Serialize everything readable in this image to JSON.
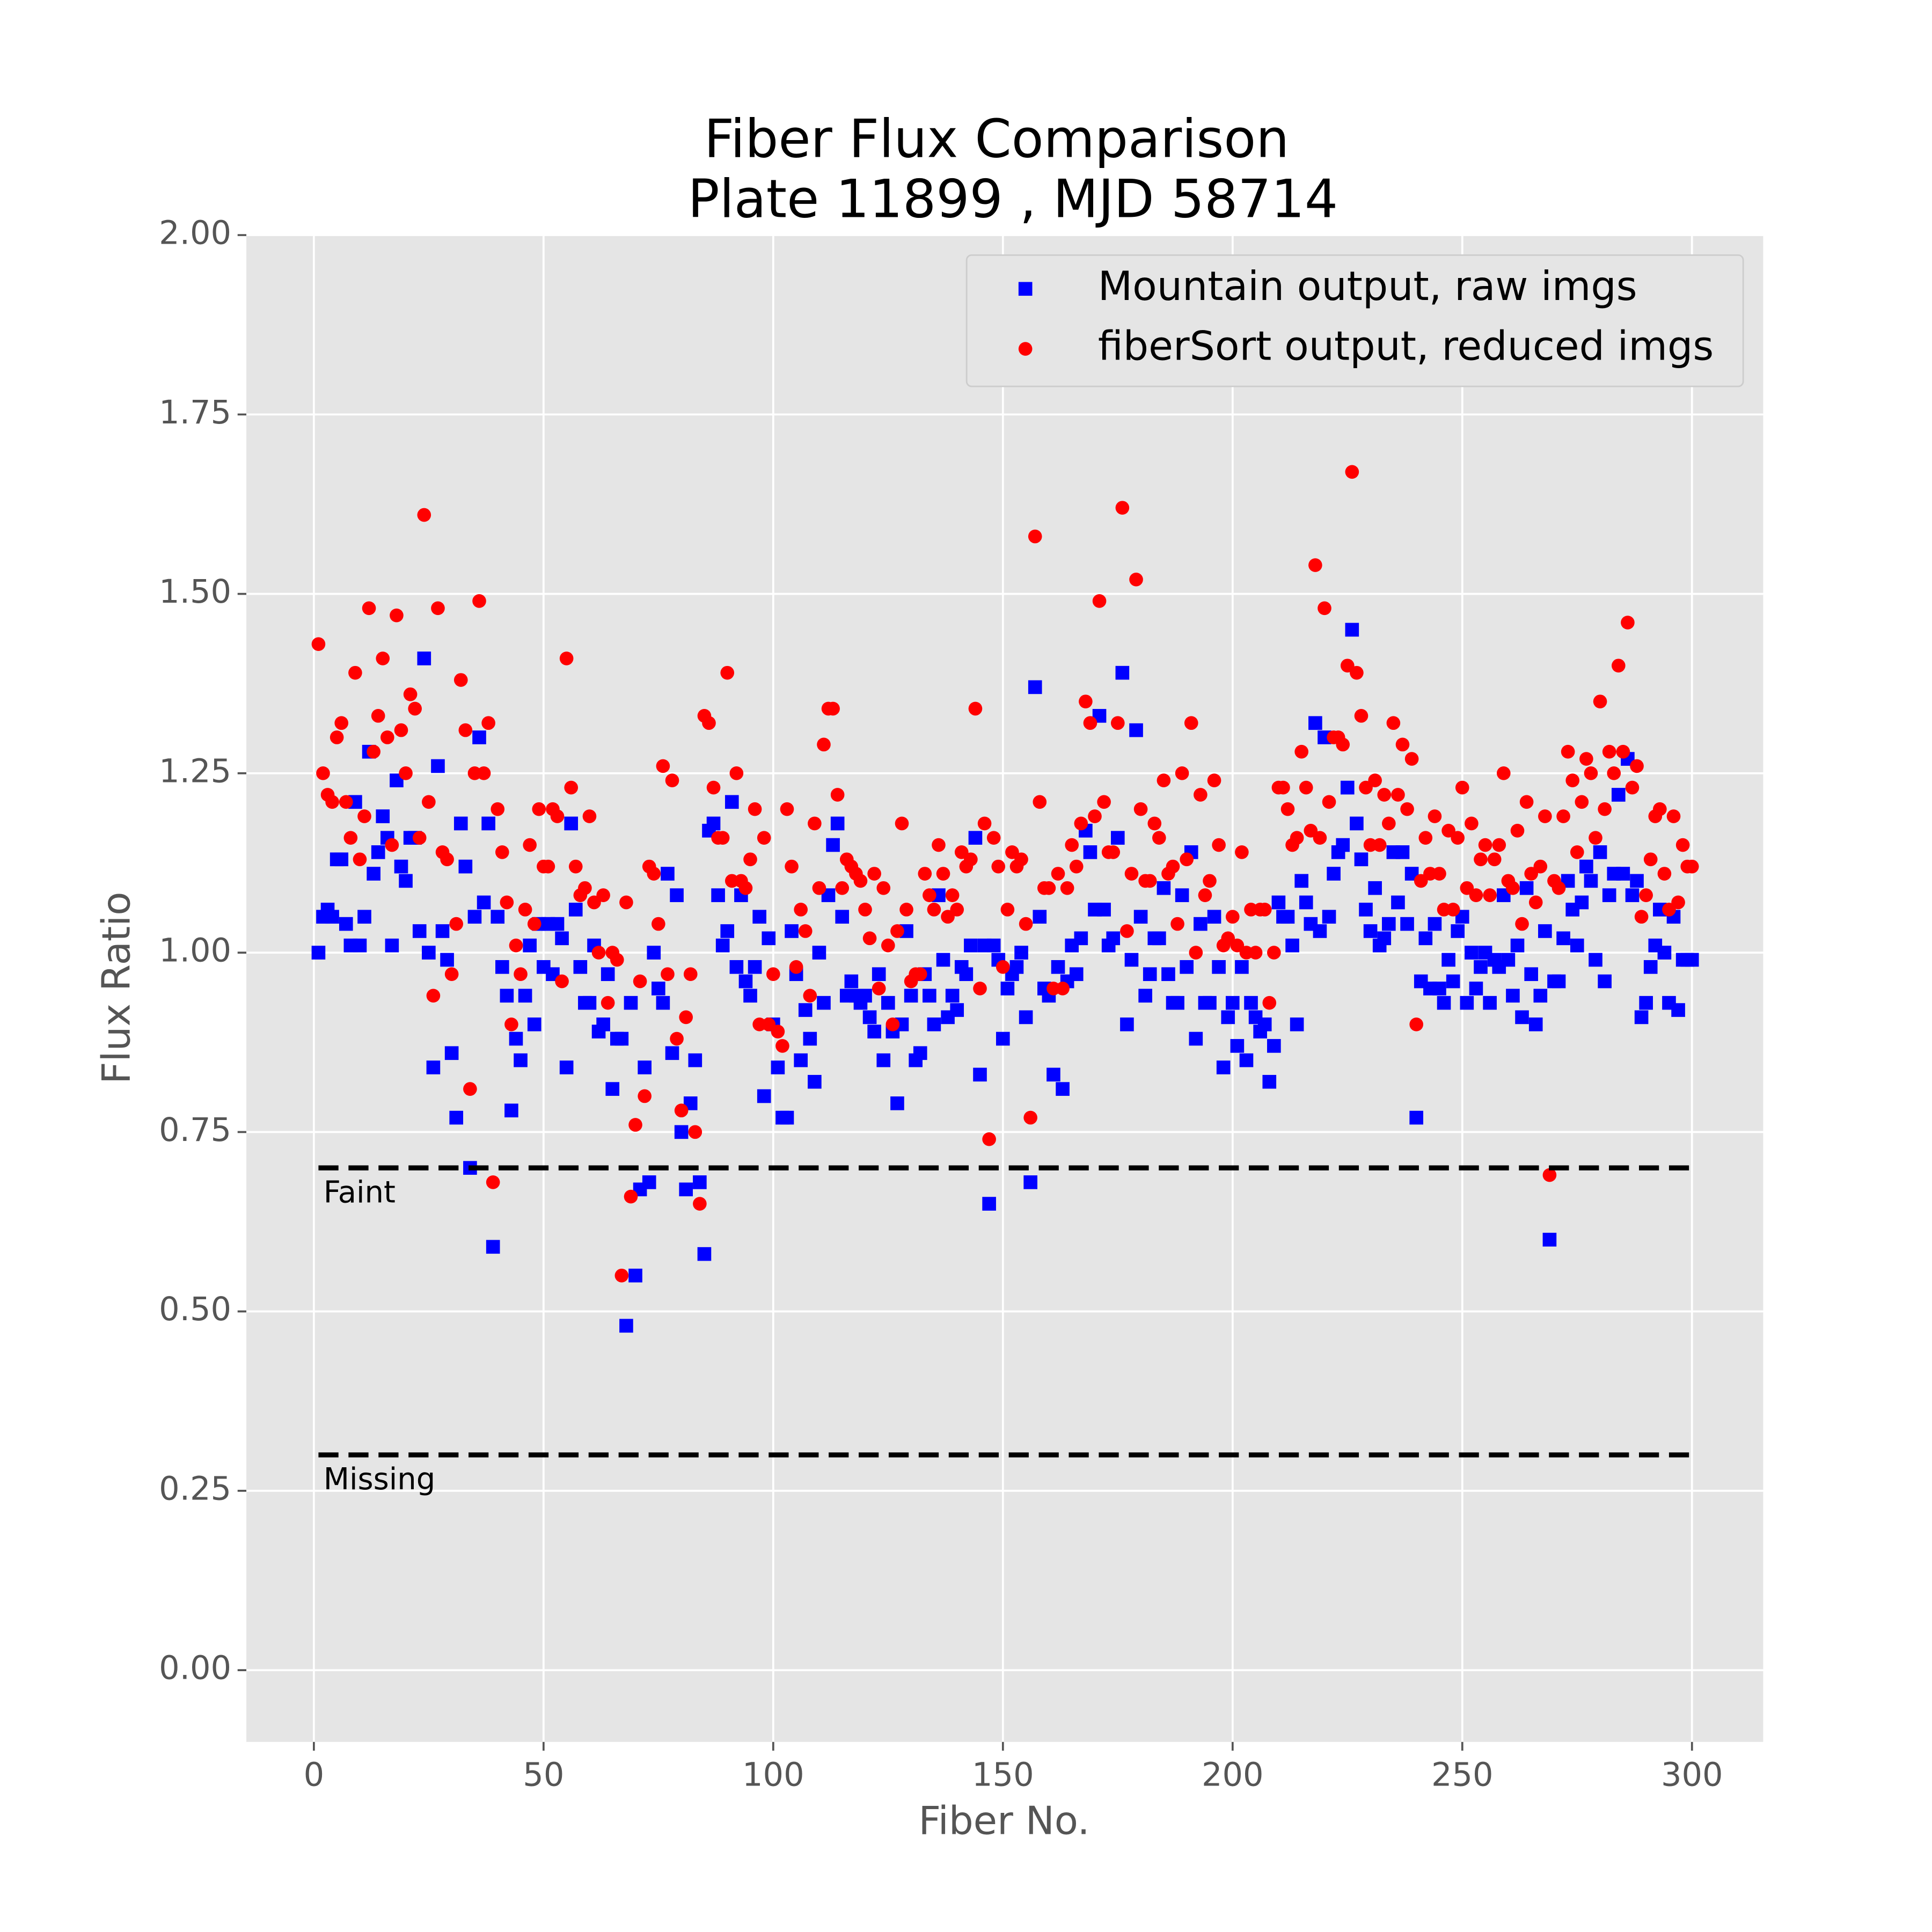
{
  "chart_data": {
    "type": "scatter",
    "title": [
      "Fiber Flux Comparison",
      "Plate 11899 , MJD 58714"
    ],
    "xlabel": "Fiber No.",
    "ylabel": "Flux Ratio",
    "xlim": [
      -14.7,
      315.5
    ],
    "ylim": [
      -0.1,
      2.0
    ],
    "xticks": [
      0,
      50,
      100,
      150,
      200,
      250,
      300
    ],
    "yticks": [
      {
        "value": 0,
        "label": "0.00"
      },
      {
        "value": 0.25,
        "label": "0.25"
      },
      {
        "value": 0.5,
        "label": "0.50"
      },
      {
        "value": 0.75,
        "label": "0.75"
      },
      {
        "value": 1,
        "label": "1.00"
      },
      {
        "value": 1.25,
        "label": "1.25"
      },
      {
        "value": 1.5,
        "label": "1.50"
      },
      {
        "value": 1.75,
        "label": "1.75"
      },
      {
        "value": 2,
        "label": "2.00"
      }
    ],
    "grid": true,
    "legend": "upper right",
    "hlines": [
      {
        "value": 0.7,
        "label": "Faint"
      },
      {
        "value": 0.3,
        "label": "Missing"
      }
    ],
    "x": [
      1,
      2,
      3,
      4,
      5,
      6,
      7,
      8,
      9,
      10,
      11,
      12,
      13,
      14,
      15,
      16,
      17,
      18,
      19,
      20,
      21,
      22,
      23,
      24,
      25,
      26,
      27,
      28,
      29,
      30,
      31,
      32,
      33,
      34,
      35,
      36,
      37,
      38,
      39,
      40,
      41,
      42,
      43,
      44,
      45,
      46,
      47,
      48,
      49,
      50,
      51,
      52,
      53,
      54,
      55,
      56,
      57,
      58,
      59,
      60,
      61,
      62,
      63,
      64,
      65,
      66,
      67,
      68,
      69,
      70,
      71,
      72,
      73,
      74,
      75,
      76,
      77,
      78,
      79,
      80,
      81,
      82,
      83,
      84,
      85,
      86,
      87,
      88,
      89,
      90,
      91,
      92,
      93,
      94,
      95,
      96,
      97,
      98,
      99,
      100,
      101,
      102,
      103,
      104,
      105,
      106,
      107,
      108,
      109,
      110,
      111,
      112,
      113,
      114,
      115,
      116,
      117,
      118,
      119,
      120,
      121,
      122,
      123,
      124,
      125,
      126,
      127,
      128,
      129,
      130,
      131,
      132,
      133,
      134,
      135,
      136,
      137,
      138,
      139,
      140,
      141,
      142,
      143,
      144,
      145,
      146,
      147,
      148,
      149,
      150,
      151,
      152,
      153,
      154,
      155,
      156,
      157,
      158,
      159,
      160,
      161,
      162,
      163,
      164,
      165,
      166,
      167,
      168,
      169,
      170,
      171,
      172,
      173,
      174,
      175,
      176,
      177,
      178,
      179,
      180,
      181,
      182,
      183,
      184,
      185,
      186,
      187,
      188,
      189,
      190,
      191,
      192,
      193,
      194,
      195,
      196,
      197,
      198,
      199,
      200,
      201,
      202,
      203,
      204,
      205,
      206,
      207,
      208,
      209,
      210,
      211,
      212,
      213,
      214,
      215,
      216,
      217,
      218,
      219,
      220,
      221,
      222,
      223,
      224,
      225,
      226,
      227,
      228,
      229,
      230,
      231,
      232,
      233,
      234,
      235,
      236,
      237,
      238,
      239,
      240,
      241,
      242,
      243,
      244,
      245,
      246,
      247,
      248,
      249,
      250,
      251,
      252,
      253,
      254,
      255,
      256,
      257,
      258,
      259,
      260,
      261,
      262,
      263,
      264,
      265,
      266,
      267,
      268,
      269,
      270,
      271,
      272,
      273,
      274,
      275,
      276,
      277,
      278,
      279,
      280,
      281,
      282,
      283,
      284,
      285,
      286,
      287,
      288,
      289,
      290,
      291,
      292,
      293,
      294,
      295,
      296,
      297,
      298,
      299,
      300
    ],
    "series": [
      {
        "name": "Mountain output, raw imgs",
        "color": "#0000ff",
        "marker": "square",
        "values": [
          1.0,
          1.05,
          1.06,
          1.05,
          1.13,
          1.13,
          1.04,
          1.01,
          1.21,
          1.01,
          1.05,
          1.28,
          1.11,
          1.14,
          1.19,
          1.16,
          1.01,
          1.24,
          1.12,
          1.1,
          1.16,
          1.16,
          1.03,
          1.41,
          1.0,
          0.84,
          1.26,
          1.03,
          0.99,
          0.86,
          0.77,
          1.18,
          1.12,
          0.7,
          1.05,
          1.3,
          1.07,
          1.18,
          0.59,
          1.05,
          0.98,
          0.94,
          0.78,
          0.88,
          0.85,
          0.94,
          1.01,
          0.9,
          1.04,
          0.98,
          1.04,
          0.97,
          1.04,
          1.02,
          0.84,
          1.18,
          1.06,
          0.98,
          0.93,
          0.93,
          1.01,
          0.89,
          0.9,
          0.97,
          0.81,
          0.88,
          0.88,
          0.48,
          0.93,
          0.55,
          0.67,
          0.84,
          0.68,
          1.0,
          0.95,
          0.93,
          1.11,
          0.86,
          1.08,
          0.75,
          0.67,
          0.79,
          0.85,
          0.68,
          0.58,
          1.17,
          1.18,
          1.08,
          1.01,
          1.03,
          1.21,
          0.98,
          1.08,
          0.96,
          0.94,
          0.98,
          1.05,
          0.8,
          1.02,
          0.9,
          0.84,
          0.77,
          0.77,
          1.03,
          0.97,
          0.85,
          0.92,
          0.88,
          0.82,
          1.0,
          0.93,
          1.08,
          1.15,
          1.18,
          1.05,
          0.94,
          0.96,
          0.94,
          0.93,
          0.94,
          0.91,
          0.89,
          0.97,
          0.85,
          0.93,
          0.89,
          0.79,
          0.9,
          1.03,
          0.94,
          0.85,
          0.86,
          0.97,
          0.94,
          0.9,
          1.08,
          0.99,
          0.91,
          0.94,
          0.92,
          0.98,
          0.97,
          1.01,
          1.16,
          0.83,
          1.01,
          0.65,
          1.01,
          0.99,
          0.88,
          0.95,
          0.97,
          0.98,
          1.0,
          0.91,
          0.68,
          1.37,
          1.05,
          0.95,
          0.94,
          0.83,
          0.98,
          0.81,
          0.96,
          1.01,
          0.97,
          1.02,
          1.17,
          1.14,
          1.06,
          1.33,
          1.06,
          1.01,
          1.02,
          1.16,
          1.39,
          0.9,
          0.99,
          1.31,
          1.05,
          0.94,
          0.97,
          1.02,
          1.02,
          1.09,
          0.97,
          0.93,
          0.93,
          1.08,
          0.98,
          1.14,
          0.88,
          1.04,
          0.93,
          0.93,
          1.05,
          0.98,
          0.84,
          0.91,
          0.93,
          0.87,
          0.98,
          0.85,
          0.93,
          0.91,
          0.89,
          0.9,
          0.82,
          0.87,
          1.07,
          1.05,
          1.05,
          1.01,
          0.9,
          1.1,
          1.07,
          1.04,
          1.32,
          1.03,
          1.3,
          1.05,
          1.11,
          1.14,
          1.15,
          1.23,
          1.45,
          1.18,
          1.13,
          1.06,
          1.03,
          1.09,
          1.01,
          1.02,
          1.04,
          1.14,
          1.07,
          1.14,
          1.04,
          1.11,
          0.77,
          0.96,
          1.02,
          0.95,
          1.04,
          0.95,
          0.93,
          0.99,
          0.96,
          1.03,
          1.05,
          0.93,
          1.0,
          0.95,
          0.98,
          1.0,
          0.93,
          0.99,
          0.98,
          1.08,
          0.99,
          0.94,
          1.01,
          0.91,
          1.09,
          0.97,
          0.9,
          0.94,
          1.03,
          0.6,
          0.96,
          0.96,
          1.02,
          1.1,
          1.06,
          1.01,
          1.07,
          1.12,
          1.1,
          0.99,
          1.14,
          0.96,
          1.08,
          1.11,
          1.22,
          1.11,
          1.27,
          1.08,
          1.1,
          0.91,
          0.93,
          0.98,
          1.01,
          1.06,
          1.0,
          0.93,
          1.05,
          0.92,
          0.99,
          0.99,
          0.99
        ]
      },
      {
        "name": "fiberSort output, reduced imgs",
        "color": "#ff0000",
        "marker": "circle",
        "values": [
          1.43,
          1.25,
          1.22,
          1.21,
          1.3,
          1.32,
          1.21,
          1.16,
          1.39,
          1.13,
          1.19,
          1.48,
          1.28,
          1.33,
          1.41,
          1.3,
          1.15,
          1.47,
          1.31,
          1.25,
          1.36,
          1.34,
          1.16,
          1.61,
          1.21,
          0.94,
          1.48,
          1.14,
          1.13,
          0.97,
          1.04,
          1.38,
          1.31,
          0.81,
          1.25,
          1.49,
          1.25,
          1.32,
          0.68,
          1.2,
          1.14,
          1.07,
          0.9,
          1.01,
          0.97,
          1.06,
          1.15,
          1.04,
          1.2,
          1.12,
          1.12,
          1.2,
          1.19,
          0.96,
          1.41,
          1.23,
          1.12,
          1.08,
          1.09,
          1.19,
          1.07,
          1.0,
          1.08,
          0.93,
          1.0,
          0.99,
          0.55,
          1.07,
          0.66,
          0.76,
          0.96,
          0.8,
          1.12,
          1.11,
          1.04,
          1.26,
          0.97,
          1.24,
          0.88,
          0.78,
          0.91,
          0.97,
          0.75,
          0.65,
          1.33,
          1.32,
          1.23,
          1.16,
          1.16,
          1.39,
          1.1,
          1.25,
          1.1,
          1.09,
          1.13,
          1.2,
          0.9,
          1.16,
          0.9,
          0.97,
          0.89,
          0.87,
          1.2,
          1.12,
          0.98,
          1.06,
          1.03,
          0.94,
          1.18,
          1.09,
          1.29,
          1.34,
          1.34,
          1.22,
          1.09,
          1.13,
          1.12,
          1.11,
          1.1,
          1.06,
          1.02,
          1.11,
          0.95,
          1.09,
          1.01,
          0.9,
          1.03,
          1.18,
          1.06,
          0.96,
          0.97,
          0.97,
          1.11,
          1.08,
          1.06,
          1.15,
          1.11,
          1.05,
          1.08,
          1.06,
          1.14,
          1.12,
          1.13,
          1.34,
          0.95,
          1.18,
          0.74,
          1.16,
          1.12,
          0.98,
          1.06,
          1.14,
          1.12,
          1.13,
          1.04,
          0.77,
          1.58,
          1.21,
          1.09,
          1.09,
          0.95,
          1.11,
          0.95,
          1.09,
          1.15,
          1.12,
          1.18,
          1.35,
          1.32,
          1.19,
          1.49,
          1.21,
          1.14,
          1.14,
          1.32,
          1.62,
          1.03,
          1.11,
          1.52,
          1.2,
          1.1,
          1.1,
          1.18,
          1.16,
          1.24,
          1.11,
          1.12,
          1.04,
          1.25,
          1.13,
          1.32,
          1.0,
          1.22,
          1.08,
          1.1,
          1.24,
          1.15,
          1.01,
          1.02,
          1.05,
          1.01,
          1.14,
          1.0,
          1.06,
          1.0,
          1.06,
          1.06,
          0.93,
          1.0,
          1.23,
          1.23,
          1.2,
          1.15,
          1.16,
          1.28,
          1.23,
          1.17,
          1.54,
          1.16,
          1.48,
          1.21,
          1.3,
          1.3,
          1.29,
          1.4,
          1.67,
          1.39,
          1.33,
          1.23,
          1.15,
          1.24,
          1.15,
          1.22,
          1.18,
          1.32,
          1.22,
          1.29,
          1.2,
          1.27,
          0.9,
          1.1,
          1.16,
          1.11,
          1.19,
          1.11,
          1.06,
          1.17,
          1.06,
          1.16,
          1.23,
          1.09,
          1.18,
          1.08,
          1.13,
          1.15,
          1.08,
          1.13,
          1.15,
          1.25,
          1.1,
          1.09,
          1.17,
          1.04,
          1.21,
          1.11,
          1.07,
          1.12,
          1.19,
          0.69,
          1.1,
          1.09,
          1.19,
          1.28,
          1.24,
          1.14,
          1.21,
          1.27,
          1.25,
          1.16,
          1.35,
          1.2,
          1.28,
          1.25,
          1.4,
          1.28,
          1.46,
          1.23,
          1.26,
          1.05,
          1.08,
          1.13,
          1.19,
          1.2,
          1.11,
          1.06,
          1.19,
          1.07,
          1.15,
          1.12,
          1.12
        ]
      }
    ]
  }
}
